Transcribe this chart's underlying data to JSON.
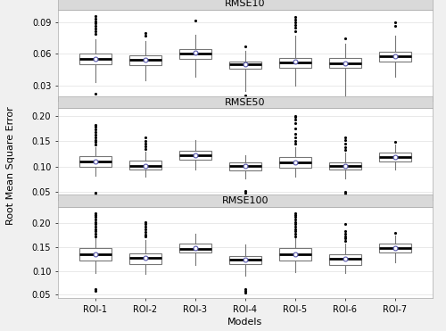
{
  "subplot_titles": [
    "RMSE10",
    "RMSE50",
    "RMSE100"
  ],
  "x_labels": [
    "ROI-1",
    "ROI-2",
    "ROI-3",
    "ROI-4",
    "ROI-5",
    "ROI-6",
    "ROI-7"
  ],
  "xlabel": "Models",
  "ylabel": "Root Mean Square Error",
  "fig_bg": "#f0f0f0",
  "panel_title_bg": "#d9d9d9",
  "plot_bg": "#ffffff",
  "rmse10": {
    "medians": [
      0.055,
      0.054,
      0.06,
      0.05,
      0.052,
      0.051,
      0.058
    ],
    "means": [
      0.055,
      0.054,
      0.061,
      0.05,
      0.053,
      0.051,
      0.058
    ],
    "q1": [
      0.05,
      0.049,
      0.055,
      0.046,
      0.047,
      0.047,
      0.053
    ],
    "q3": [
      0.06,
      0.059,
      0.065,
      0.053,
      0.056,
      0.056,
      0.062
    ],
    "whislo": [
      0.033,
      0.035,
      0.038,
      0.025,
      0.03,
      0.02,
      0.038
    ],
    "whishi": [
      0.074,
      0.072,
      0.078,
      0.063,
      0.077,
      0.07,
      0.077
    ],
    "fliers_hi": [
      [
        0.079,
        0.082,
        0.084,
        0.087,
        0.089,
        0.091,
        0.094,
        0.096
      ],
      [
        0.077,
        0.08
      ],
      [
        0.092
      ],
      [
        0.067
      ],
      [
        0.082,
        0.085,
        0.088,
        0.09,
        0.093,
        0.095
      ],
      [
        0.075
      ],
      [
        0.087,
        0.09
      ]
    ],
    "fliers_lo": [
      [
        0.022
      ],
      [],
      [],
      [
        0.02
      ],
      [],
      [
        0.016
      ],
      []
    ]
  },
  "rmse50": {
    "medians": [
      0.11,
      0.102,
      0.122,
      0.101,
      0.108,
      0.101,
      0.118
    ],
    "means": [
      0.11,
      0.102,
      0.122,
      0.101,
      0.109,
      0.101,
      0.118
    ],
    "q1": [
      0.1,
      0.094,
      0.113,
      0.093,
      0.098,
      0.094,
      0.11
    ],
    "q3": [
      0.12,
      0.111,
      0.132,
      0.108,
      0.118,
      0.109,
      0.128
    ],
    "whislo": [
      0.082,
      0.08,
      0.095,
      0.076,
      0.08,
      0.076,
      0.094
    ],
    "whishi": [
      0.138,
      0.13,
      0.153,
      0.123,
      0.138,
      0.128,
      0.143
    ],
    "fliers_hi": [
      [
        0.143,
        0.148,
        0.153,
        0.158,
        0.163,
        0.168,
        0.173,
        0.178,
        0.182
      ],
      [
        0.135,
        0.14,
        0.145,
        0.151,
        0.157
      ],
      [],
      [],
      [
        0.145,
        0.15,
        0.158,
        0.165,
        0.175,
        0.185,
        0.193,
        0.198,
        0.2
      ],
      [
        0.133,
        0.138,
        0.146,
        0.153,
        0.158
      ],
      [
        0.148
      ]
    ],
    "fliers_lo": [
      [
        0.045,
        0.048
      ],
      [],
      [],
      [
        0.048,
        0.052
      ],
      [],
      [
        0.046,
        0.05
      ],
      []
    ]
  },
  "rmse100": {
    "medians": [
      0.135,
      0.127,
      0.147,
      0.124,
      0.135,
      0.125,
      0.148
    ],
    "means": [
      0.135,
      0.127,
      0.148,
      0.124,
      0.135,
      0.125,
      0.148
    ],
    "q1": [
      0.122,
      0.114,
      0.138,
      0.114,
      0.122,
      0.113,
      0.138
    ],
    "q3": [
      0.148,
      0.137,
      0.158,
      0.132,
      0.148,
      0.134,
      0.158
    ],
    "whislo": [
      0.095,
      0.093,
      0.112,
      0.09,
      0.097,
      0.096,
      0.118
    ],
    "whishi": [
      0.168,
      0.165,
      0.178,
      0.156,
      0.168,
      0.158,
      0.175
    ],
    "fliers_hi": [
      [
        0.173,
        0.178,
        0.183,
        0.188,
        0.193,
        0.198,
        0.203,
        0.208,
        0.213,
        0.218,
        0.222
      ],
      [
        0.172,
        0.177,
        0.182,
        0.188,
        0.193,
        0.198,
        0.203
      ],
      [],
      [],
      [
        0.173,
        0.178,
        0.183,
        0.188,
        0.193,
        0.198,
        0.203,
        0.208,
        0.213,
        0.218,
        0.222
      ],
      [
        0.163,
        0.168,
        0.173,
        0.178,
        0.183,
        0.198
      ],
      [
        0.18
      ]
    ],
    "fliers_lo": [
      [
        0.057,
        0.061
      ],
      [],
      [],
      [
        0.054,
        0.057,
        0.061
      ],
      [],
      [],
      []
    ]
  },
  "ylim10": [
    0.015,
    0.102
  ],
  "ylim50": [
    0.035,
    0.215
  ],
  "ylim100": [
    0.043,
    0.235
  ],
  "yticks10": [
    0.03,
    0.06,
    0.09
  ],
  "yticks50": [
    0.05,
    0.1,
    0.15,
    0.2
  ],
  "yticks100": [
    0.05,
    0.1,
    0.15,
    0.2
  ]
}
